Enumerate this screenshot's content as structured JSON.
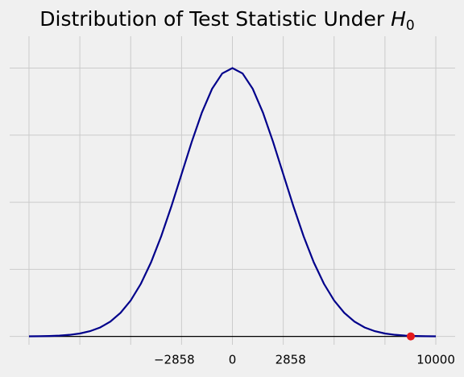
{
  "chart_data": {
    "type": "line",
    "title": {
      "text": "Distribution of Test Statistic Under",
      "math": "H",
      "sub": "0"
    },
    "x": [
      -10000,
      -9500,
      -9000,
      -8500,
      -8000,
      -7500,
      -7000,
      -6500,
      -6000,
      -5500,
      -5000,
      -4500,
      -4000,
      -3500,
      -3000,
      -2500,
      -2000,
      -1500,
      -1000,
      -500,
      0,
      500,
      1000,
      1500,
      2000,
      2500,
      3000,
      3500,
      4000,
      4500,
      5000,
      5500,
      6000,
      6500,
      7000,
      7500,
      8000,
      8500,
      9000,
      9500,
      10000
    ],
    "series": [
      {
        "color": "#00008b",
        "values": [
          5e-08,
          1.1e-07,
          2.4e-07,
          4.8e-07,
          9.3e-07,
          1.73e-06,
          3.11e-06,
          5.34e-06,
          8.84e-06,
          1.404e-05,
          2.141e-05,
          3.138e-05,
          4.417e-05,
          5.972e-05,
          7.757e-05,
          9.677e-05,
          0.00011598,
          0.00013351,
          0.00014763,
          0.00015681,
          0.00016,
          0.00015681,
          0.00014763,
          0.00013351,
          0.00011598,
          9.677e-05,
          7.757e-05,
          5.972e-05,
          4.417e-05,
          3.138e-05,
          2.141e-05,
          1.404e-05,
          8.84e-06,
          5.34e-06,
          3.11e-06,
          1.73e-06,
          9.3e-07,
          4.8e-07,
          2.4e-07,
          1.1e-07,
          5e-08
        ]
      }
    ],
    "point": {
      "x": 8770,
      "y": 0,
      "color": "#e41a1c"
    },
    "baseline": {
      "y": 0,
      "color": "#000000"
    },
    "xlim": [
      -10950,
      10950
    ],
    "ylim": [
      -5e-06,
      0.000179
    ],
    "xticks": [
      -10000,
      -7500,
      -5000,
      -2500,
      0,
      2500,
      5000,
      7500,
      10000
    ],
    "xtick_labels": [
      {
        "value": -2858,
        "label": "−2858"
      },
      0,
      2858,
      10000
    ],
    "yticks": [
      0,
      4e-05,
      8e-05,
      0.00012,
      0.00016
    ],
    "grid": true
  }
}
